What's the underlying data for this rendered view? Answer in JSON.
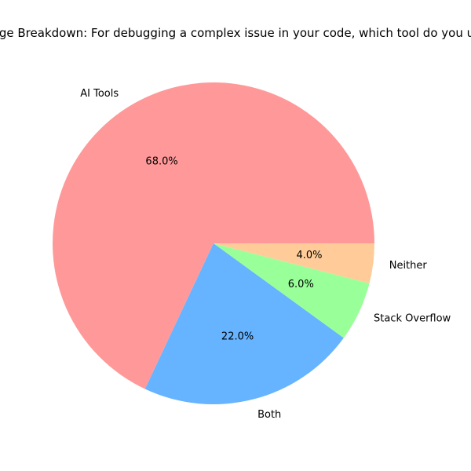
{
  "chart_data": {
    "type": "pie",
    "title": "Usage Breakdown: For debugging a complex issue in your code, which tool do you use?",
    "categories": [
      "AI Tools",
      "Both",
      "Stack Overflow",
      "Neither"
    ],
    "values": [
      68.0,
      22.0,
      6.0,
      4.0
    ],
    "percent_labels": [
      "68.0%",
      "22.0%",
      "6.0%",
      "4.0%"
    ],
    "colors": [
      "#ff9999",
      "#66b3ff",
      "#99ff99",
      "#ffcc99"
    ],
    "start_angle_deg": 0,
    "direction": "counterclockwise",
    "legend": "none"
  }
}
